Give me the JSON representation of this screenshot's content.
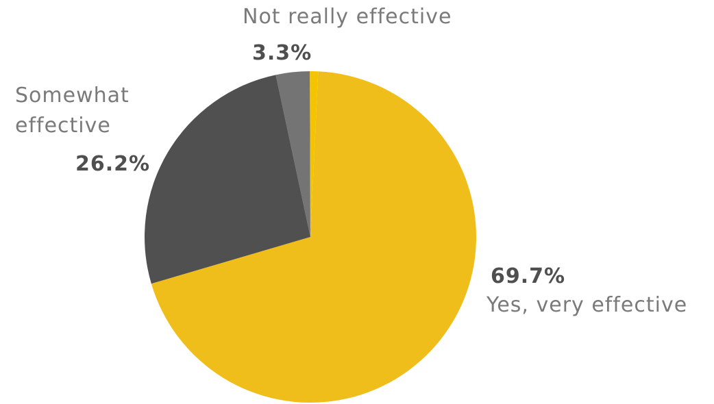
{
  "chart_data": {
    "type": "pie",
    "slices": [
      {
        "label": "Yes, very effective",
        "value": 69.7,
        "value_label": "69.7%",
        "color": "#efbe1a"
      },
      {
        "label": "Somewhat effective",
        "value": 26.2,
        "value_label": "26.2%",
        "color": "#505050"
      },
      {
        "label": "Not really effective",
        "value": 3.3,
        "value_label": "3.3%",
        "color": "#747474"
      },
      {
        "label": "",
        "value": 0.8,
        "value_label": "",
        "color": "#f5c400"
      }
    ]
  },
  "labels": {
    "yes_pct": "69.7%",
    "yes_name": "Yes, very effective",
    "somewhat_pct": "26.2%",
    "somewhat_name_line1": "Somewhat",
    "somewhat_name_line2": "effective",
    "notreally_pct": "3.3%",
    "notreally_name": "Not really effective"
  }
}
